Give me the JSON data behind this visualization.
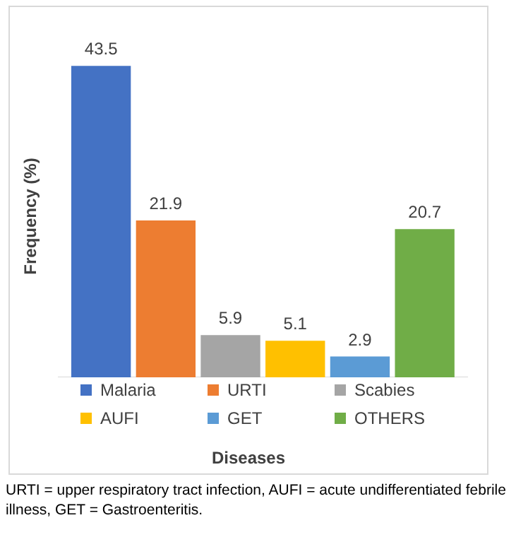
{
  "chart_data": {
    "type": "bar",
    "categories": [
      null
    ],
    "series": [
      {
        "name": "Malaria",
        "color": "#4472c4",
        "values": [
          43.5
        ]
      },
      {
        "name": "URTI",
        "color": "#ed7d31",
        "values": [
          21.9
        ]
      },
      {
        "name": "Scabies",
        "color": "#a5a5a5",
        "values": [
          5.9
        ]
      },
      {
        "name": "AUFI",
        "color": "#ffc000",
        "values": [
          5.1
        ]
      },
      {
        "name": "GET",
        "color": "#5b9bd5",
        "values": [
          2.9
        ]
      },
      {
        "name": "OTHERS",
        "color": "#70ad47",
        "values": [
          20.7
        ]
      }
    ],
    "ylabel": "Frequency (%)",
    "xlabel": "Diseases",
    "data_labels": true,
    "legend": "bottom",
    "grid": false,
    "tick_labels": false,
    "annotations": [
      "URTI = upper respiratory tract infection, AUFI = acute undifferentiated febrile illness, GET = Gastroenteritis."
    ]
  }
}
